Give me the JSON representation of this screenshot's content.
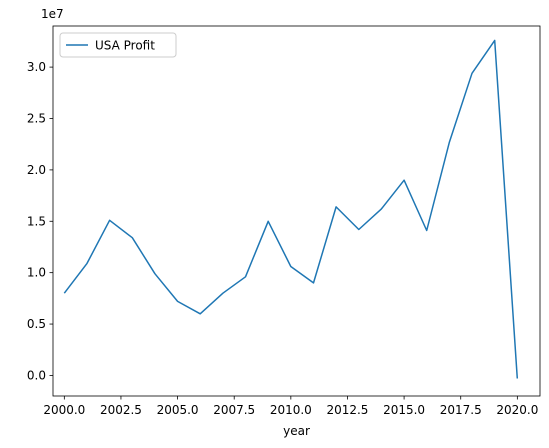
{
  "chart_data": {
    "type": "line",
    "title": "",
    "xlabel": "year",
    "ylabel": "",
    "y_offset_label": "1e7",
    "x_ticks": [
      2000.0,
      2002.5,
      2005.0,
      2007.5,
      2010.0,
      2012.5,
      2015.0,
      2017.5,
      2020.0
    ],
    "x_tick_labels": [
      "2000.0",
      "2002.5",
      "2005.0",
      "2007.5",
      "2010.0",
      "2012.5",
      "2015.0",
      "2017.5",
      "2020.0"
    ],
    "y_ticks": [
      0.0,
      0.5,
      1.0,
      1.5,
      2.0,
      2.5,
      3.0
    ],
    "y_tick_labels": [
      "0.0",
      "0.5",
      "1.0",
      "1.5",
      "2.0",
      "2.5",
      "3.0"
    ],
    "xlim": [
      1999.5,
      2021.0
    ],
    "ylim": [
      -0.2,
      3.4
    ],
    "grid": false,
    "legend": {
      "placement": "top-left",
      "entries": [
        "USA Profit"
      ]
    },
    "series": [
      {
        "name": "USA Profit",
        "color": "#1f77b4",
        "x": [
          2000,
          2001,
          2002,
          2003,
          2004,
          2005,
          2006,
          2007,
          2008,
          2009,
          2010,
          2011,
          2012,
          2013,
          2014,
          2015,
          2016,
          2017,
          2018,
          2019,
          2020
        ],
        "y": [
          0.8,
          1.09,
          1.51,
          1.34,
          0.99,
          0.72,
          0.6,
          0.8,
          0.96,
          1.5,
          1.06,
          0.9,
          1.64,
          1.42,
          1.62,
          1.9,
          1.41,
          2.27,
          2.94,
          3.26,
          -0.03
        ]
      }
    ]
  }
}
